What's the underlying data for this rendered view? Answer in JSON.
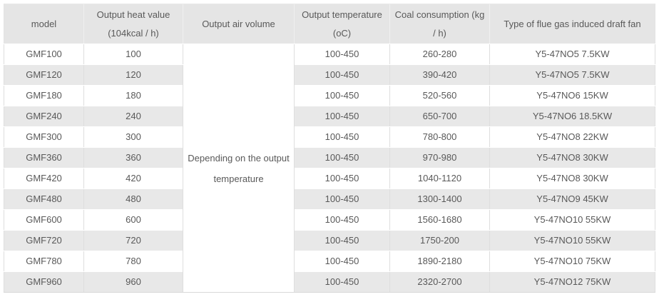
{
  "table": {
    "columns": [
      {
        "label": [
          "model"
        ]
      },
      {
        "label": [
          "Output heat value",
          "(104kcal / h)"
        ]
      },
      {
        "label": [
          "Output air volume"
        ]
      },
      {
        "label": [
          "Output temperature",
          "(oC)"
        ]
      },
      {
        "label": [
          "Coal consumption (kg",
          "/ h)"
        ]
      },
      {
        "label": [
          "Type of flue gas induced draft fan"
        ]
      }
    ],
    "air_volume_note": [
      "Depending on the output",
      "temperature"
    ],
    "rows": [
      {
        "model": "GMF100",
        "heat_value": "100",
        "output_temperature": "100-450",
        "coal_consumption": "260-280",
        "fan_type": "Y5-47NO5 7.5KW"
      },
      {
        "model": "GMF120",
        "heat_value": "120",
        "output_temperature": "100-450",
        "coal_consumption": "390-420",
        "fan_type": "Y5-47NO5 7.5KW"
      },
      {
        "model": "GMF180",
        "heat_value": "180",
        "output_temperature": "100-450",
        "coal_consumption": "520-560",
        "fan_type": "Y5-47NO6 15KW"
      },
      {
        "model": "GMF240",
        "heat_value": "240",
        "output_temperature": "100-450",
        "coal_consumption": "650-700",
        "fan_type": "Y5-47NO6 18.5KW"
      },
      {
        "model": "GMF300",
        "heat_value": "300",
        "output_temperature": "100-450",
        "coal_consumption": "780-800",
        "fan_type": "Y5-47NO8 22KW"
      },
      {
        "model": "GMF360",
        "heat_value": "360",
        "output_temperature": "100-450",
        "coal_consumption": "970-980",
        "fan_type": "Y5-47NO8 30KW"
      },
      {
        "model": "GMF420",
        "heat_value": "420",
        "output_temperature": "100-450",
        "coal_consumption": "1040-1120",
        "fan_type": "Y5-47NO8 30KW"
      },
      {
        "model": "GMF480",
        "heat_value": "480",
        "output_temperature": "100-450",
        "coal_consumption": "1300-1400",
        "fan_type": "Y5-47NO9 45KW"
      },
      {
        "model": "GMF600",
        "heat_value": "600",
        "output_temperature": "100-450",
        "coal_consumption": "1560-1680",
        "fan_type": "Y5-47NO10 55KW"
      },
      {
        "model": "GMF720",
        "heat_value": "720",
        "output_temperature": "100-450",
        "coal_consumption": "1750-200",
        "fan_type": "Y5-47NO10 55KW"
      },
      {
        "model": "GMF780",
        "heat_value": "780",
        "output_temperature": "100-450",
        "coal_consumption": "1890-2180",
        "fan_type": "Y5-47NO10 75KW"
      },
      {
        "model": "GMF960",
        "heat_value": "960",
        "output_temperature": "100-450",
        "coal_consumption": "2320-2700",
        "fan_type": "Y5-47NO12 75KW"
      }
    ]
  },
  "colors": {
    "header_bg": "#e5e5e5",
    "stripe_bg": "#e8e8e8",
    "text": "#595959",
    "grid_line": "#dedede"
  }
}
